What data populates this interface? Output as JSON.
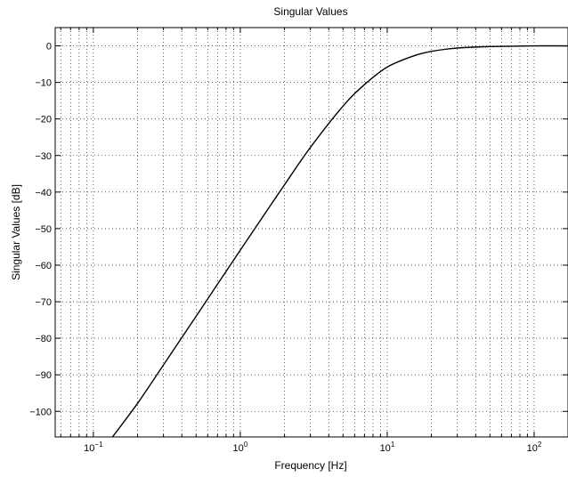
{
  "chart_data": {
    "type": "line",
    "title": "Singular Values",
    "xlabel": "Frequency [Hz]",
    "ylabel": "Singular Values [dB]",
    "xscale": "log",
    "xlim": [
      0.055,
      170
    ],
    "ylim": [
      -107,
      5
    ],
    "grid": true,
    "xticks": [
      {
        "value": 0.1,
        "base": "10",
        "exp": "−1"
      },
      {
        "value": 1,
        "base": "10",
        "exp": "0"
      },
      {
        "value": 10,
        "base": "10",
        "exp": "1"
      },
      {
        "value": 100,
        "base": "10",
        "exp": "2"
      }
    ],
    "yticks": [
      {
        "value": 0,
        "label": "0"
      },
      {
        "value": -10,
        "label": "−10"
      },
      {
        "value": -20,
        "label": "−20"
      },
      {
        "value": -30,
        "label": "−30"
      },
      {
        "value": -40,
        "label": "−40"
      },
      {
        "value": -50,
        "label": "−50"
      },
      {
        "value": -60,
        "label": "−60"
      },
      {
        "value": -70,
        "label": "−70"
      },
      {
        "value": -80,
        "label": "−80"
      },
      {
        "value": -90,
        "label": "−90"
      },
      {
        "value": -100,
        "label": "−100"
      }
    ],
    "series": [
      {
        "color": "#000000",
        "x": [
          0.135,
          0.2,
          0.3,
          0.5,
          0.7,
          1.0,
          1.5,
          2.0,
          3.0,
          5.0,
          7.0,
          10,
          15,
          20,
          30,
          50,
          70,
          100,
          170
        ],
        "y": [
          -107,
          -97.8,
          -87.3,
          -74.0,
          -65.2,
          -55.9,
          -45.4,
          -38.0,
          -27.8,
          -16.5,
          -10.6,
          -5.8,
          -2.8,
          -1.5,
          -0.6,
          -0.2,
          -0.1,
          0,
          0
        ]
      }
    ]
  }
}
